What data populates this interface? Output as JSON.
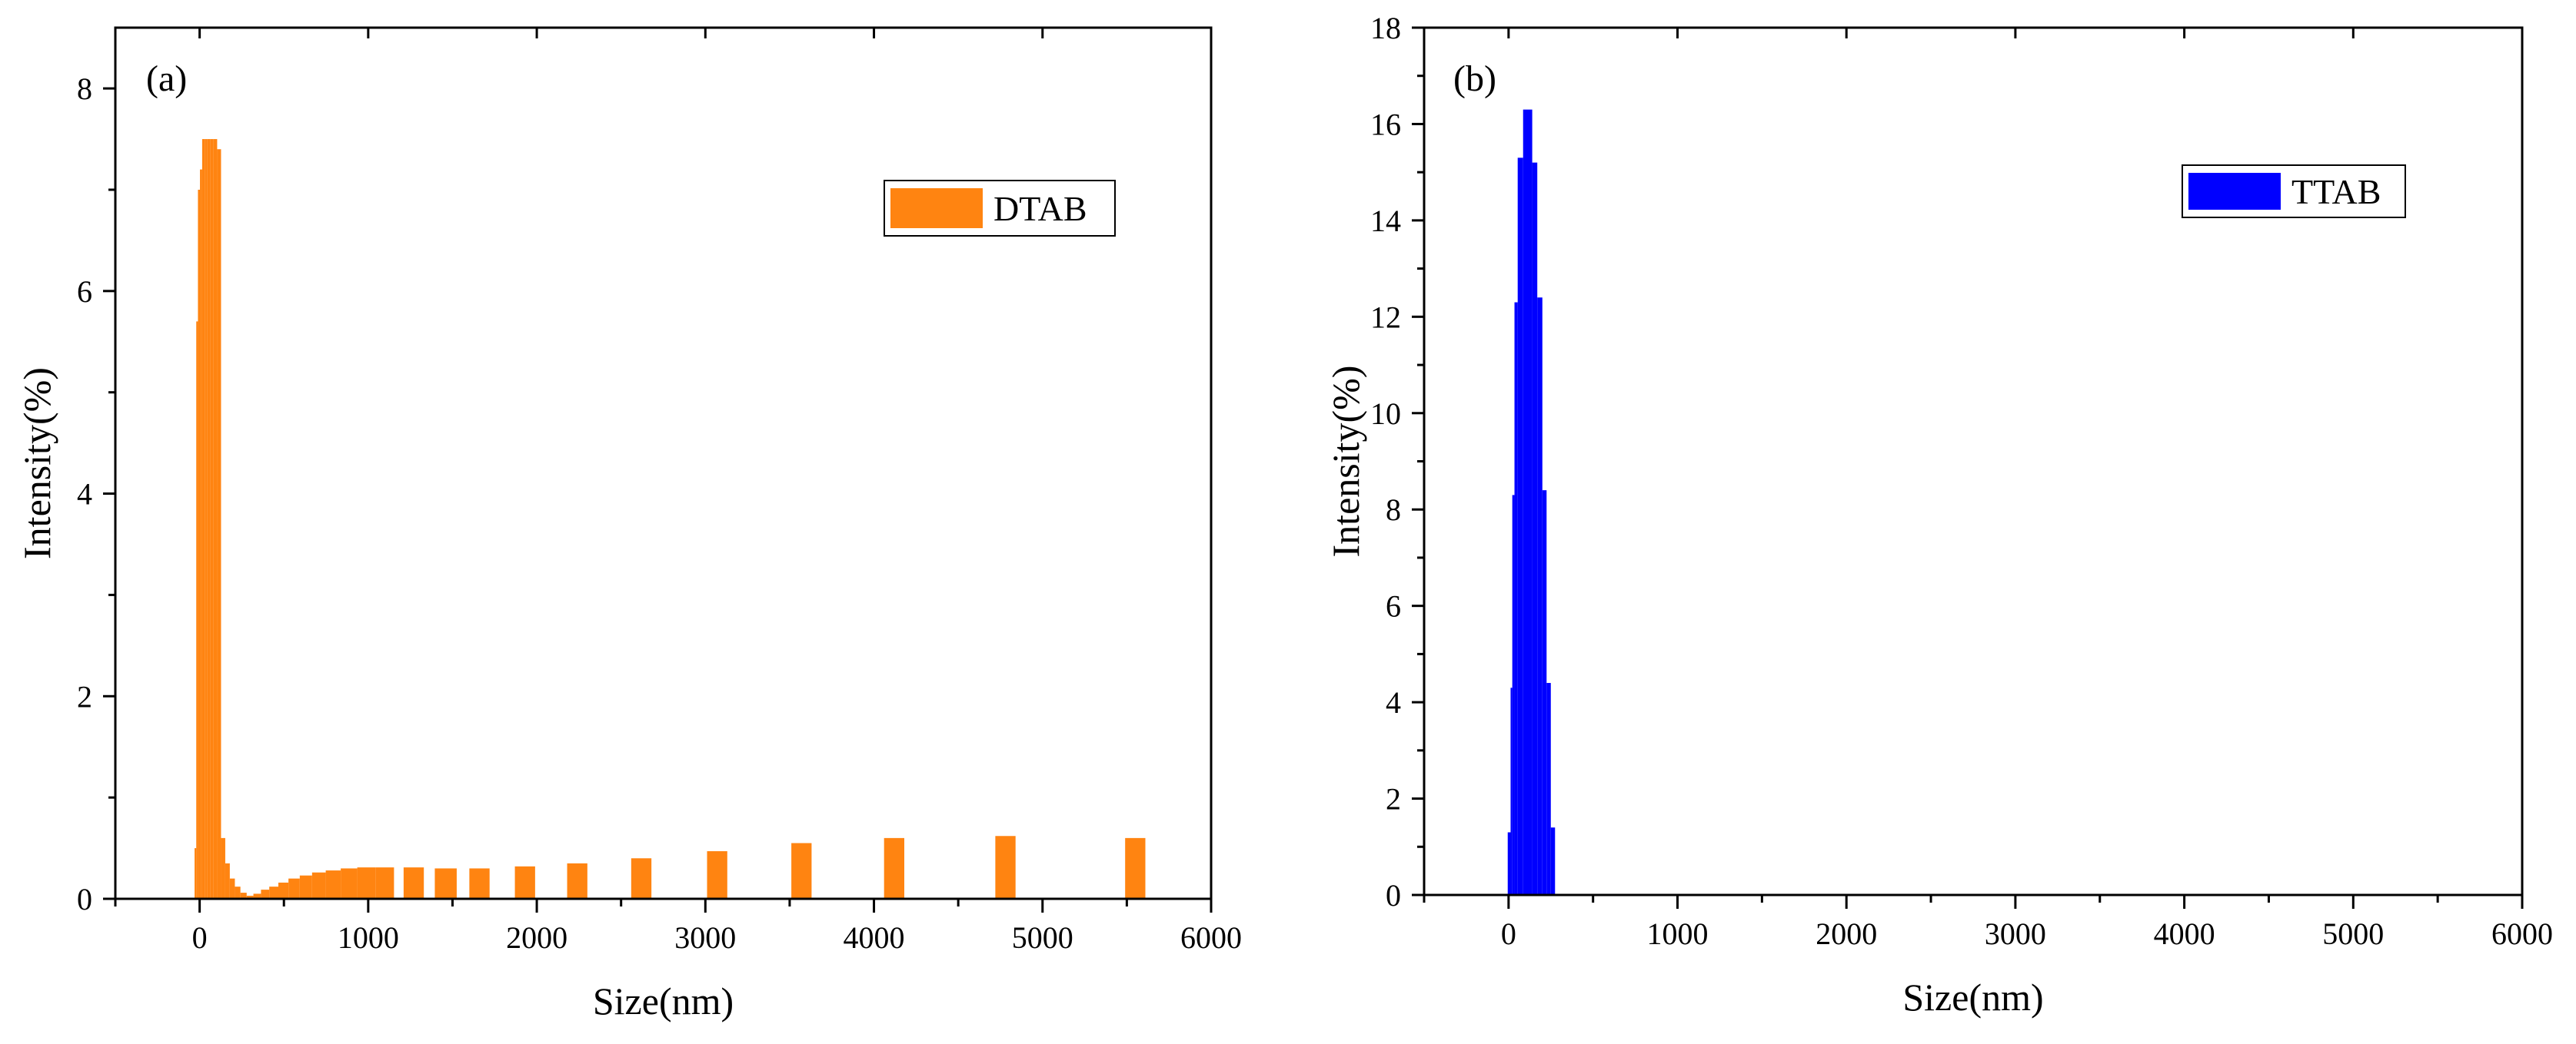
{
  "chart_data": [
    {
      "panel_label": "(a)",
      "type": "bar",
      "xlabel": "Size(nm)",
      "ylabel": "Intensity(%)",
      "xlim": [
        -500,
        6000
      ],
      "ylim": [
        0,
        8.6
      ],
      "xticks": [
        0,
        1000,
        2000,
        3000,
        4000,
        5000,
        6000
      ],
      "xtick_labels": [
        "0",
        "1000",
        "2000",
        "3000",
        "4000",
        "5000",
        "6000"
      ],
      "yticks": [
        0,
        2,
        4,
        6,
        8
      ],
      "ytick_labels": [
        "0",
        "2",
        "4",
        "6",
        "8"
      ],
      "legend": {
        "label": "DTAB",
        "placement": "top-right"
      },
      "color": "#FF8411",
      "series": [
        {
          "name": "DTAB",
          "bars": [
            {
              "x": -30,
              "w": 10,
              "y": 0.5
            },
            {
              "x": -20,
              "w": 10,
              "y": 5.7
            },
            {
              "x": -10,
              "w": 12,
              "y": 7.0
            },
            {
              "x": 2,
              "w": 13,
              "y": 7.2
            },
            {
              "x": 15,
              "w": 15,
              "y": 7.5
            },
            {
              "x": 30,
              "w": 16,
              "y": 7.5
            },
            {
              "x": 46,
              "w": 18,
              "y": 7.5
            },
            {
              "x": 64,
              "w": 19,
              "y": 7.5
            },
            {
              "x": 83,
              "w": 21,
              "y": 7.5
            },
            {
              "x": 104,
              "w": 23,
              "y": 7.4
            },
            {
              "x": 127,
              "w": 25,
              "y": 0.6
            },
            {
              "x": 152,
              "w": 27,
              "y": 0.35
            },
            {
              "x": 179,
              "w": 30,
              "y": 0.2
            },
            {
              "x": 209,
              "w": 33,
              "y": 0.12
            },
            {
              "x": 242,
              "w": 37,
              "y": 0.06
            },
            {
              "x": 279,
              "w": 40,
              "y": 0.03
            },
            {
              "x": 319,
              "w": 45,
              "y": 0.05
            },
            {
              "x": 364,
              "w": 49,
              "y": 0.09
            },
            {
              "x": 413,
              "w": 54,
              "y": 0.12
            },
            {
              "x": 467,
              "w": 60,
              "y": 0.16
            },
            {
              "x": 527,
              "w": 67,
              "y": 0.2
            },
            {
              "x": 594,
              "w": 73,
              "y": 0.23
            },
            {
              "x": 667,
              "w": 81,
              "y": 0.26
            },
            {
              "x": 748,
              "w": 89,
              "y": 0.28
            },
            {
              "x": 837,
              "w": 98,
              "y": 0.3
            },
            {
              "x": 935,
              "w": 108,
              "y": 0.31
            },
            {
              "x": 1043,
              "w": 110,
              "y": 0.31
            },
            {
              "x": 1210,
              "w": 120,
              "y": 0.31
            },
            {
              "x": 1395,
              "w": 130,
              "y": 0.3
            },
            {
              "x": 1600,
              "w": 120,
              "y": 0.3
            },
            {
              "x": 1870,
              "w": 120,
              "y": 0.32
            },
            {
              "x": 2180,
              "w": 120,
              "y": 0.35
            },
            {
              "x": 2560,
              "w": 120,
              "y": 0.4
            },
            {
              "x": 3010,
              "w": 120,
              "y": 0.47
            },
            {
              "x": 3510,
              "w": 120,
              "y": 0.55
            },
            {
              "x": 4060,
              "w": 120,
              "y": 0.6
            },
            {
              "x": 4720,
              "w": 120,
              "y": 0.62
            },
            {
              "x": 5490,
              "w": 120,
              "y": 0.6
            }
          ]
        }
      ]
    },
    {
      "panel_label": "(b)",
      "type": "bar",
      "xlabel": "Size(nm)",
      "ylabel": "Intensity(%)",
      "xlim": [
        -500,
        6000
      ],
      "ylim": [
        0,
        18
      ],
      "xticks": [
        0,
        1000,
        2000,
        3000,
        4000,
        5000,
        6000
      ],
      "xtick_labels": [
        "0",
        "1000",
        "2000",
        "3000",
        "4000",
        "5000",
        "6000"
      ],
      "yticks": [
        0,
        2,
        4,
        6,
        8,
        10,
        12,
        14,
        16,
        18
      ],
      "ytick_labels": [
        "0",
        "2",
        "4",
        "6",
        "8",
        "10",
        "12",
        "14",
        "16",
        "18"
      ],
      "legend": {
        "label": "TTAB",
        "placement": "top-right"
      },
      "color": "#0000FF",
      "series": [
        {
          "name": "TTAB",
          "bars": [
            {
              "x": -5,
              "w": 17,
              "y": 1.3
            },
            {
              "x": 12,
              "w": 10,
              "y": 4.3
            },
            {
              "x": 22,
              "w": 13,
              "y": 8.3
            },
            {
              "x": 35,
              "w": 19,
              "y": 12.3
            },
            {
              "x": 54,
              "w": 32,
              "y": 15.3
            },
            {
              "x": 86,
              "w": 54,
              "y": 16.3
            },
            {
              "x": 140,
              "w": 30,
              "y": 15.2
            },
            {
              "x": 170,
              "w": 30,
              "y": 12.4
            },
            {
              "x": 200,
              "w": 25,
              "y": 8.4
            },
            {
              "x": 225,
              "w": 25,
              "y": 4.4
            },
            {
              "x": 250,
              "w": 25,
              "y": 1.4
            }
          ]
        }
      ]
    }
  ]
}
